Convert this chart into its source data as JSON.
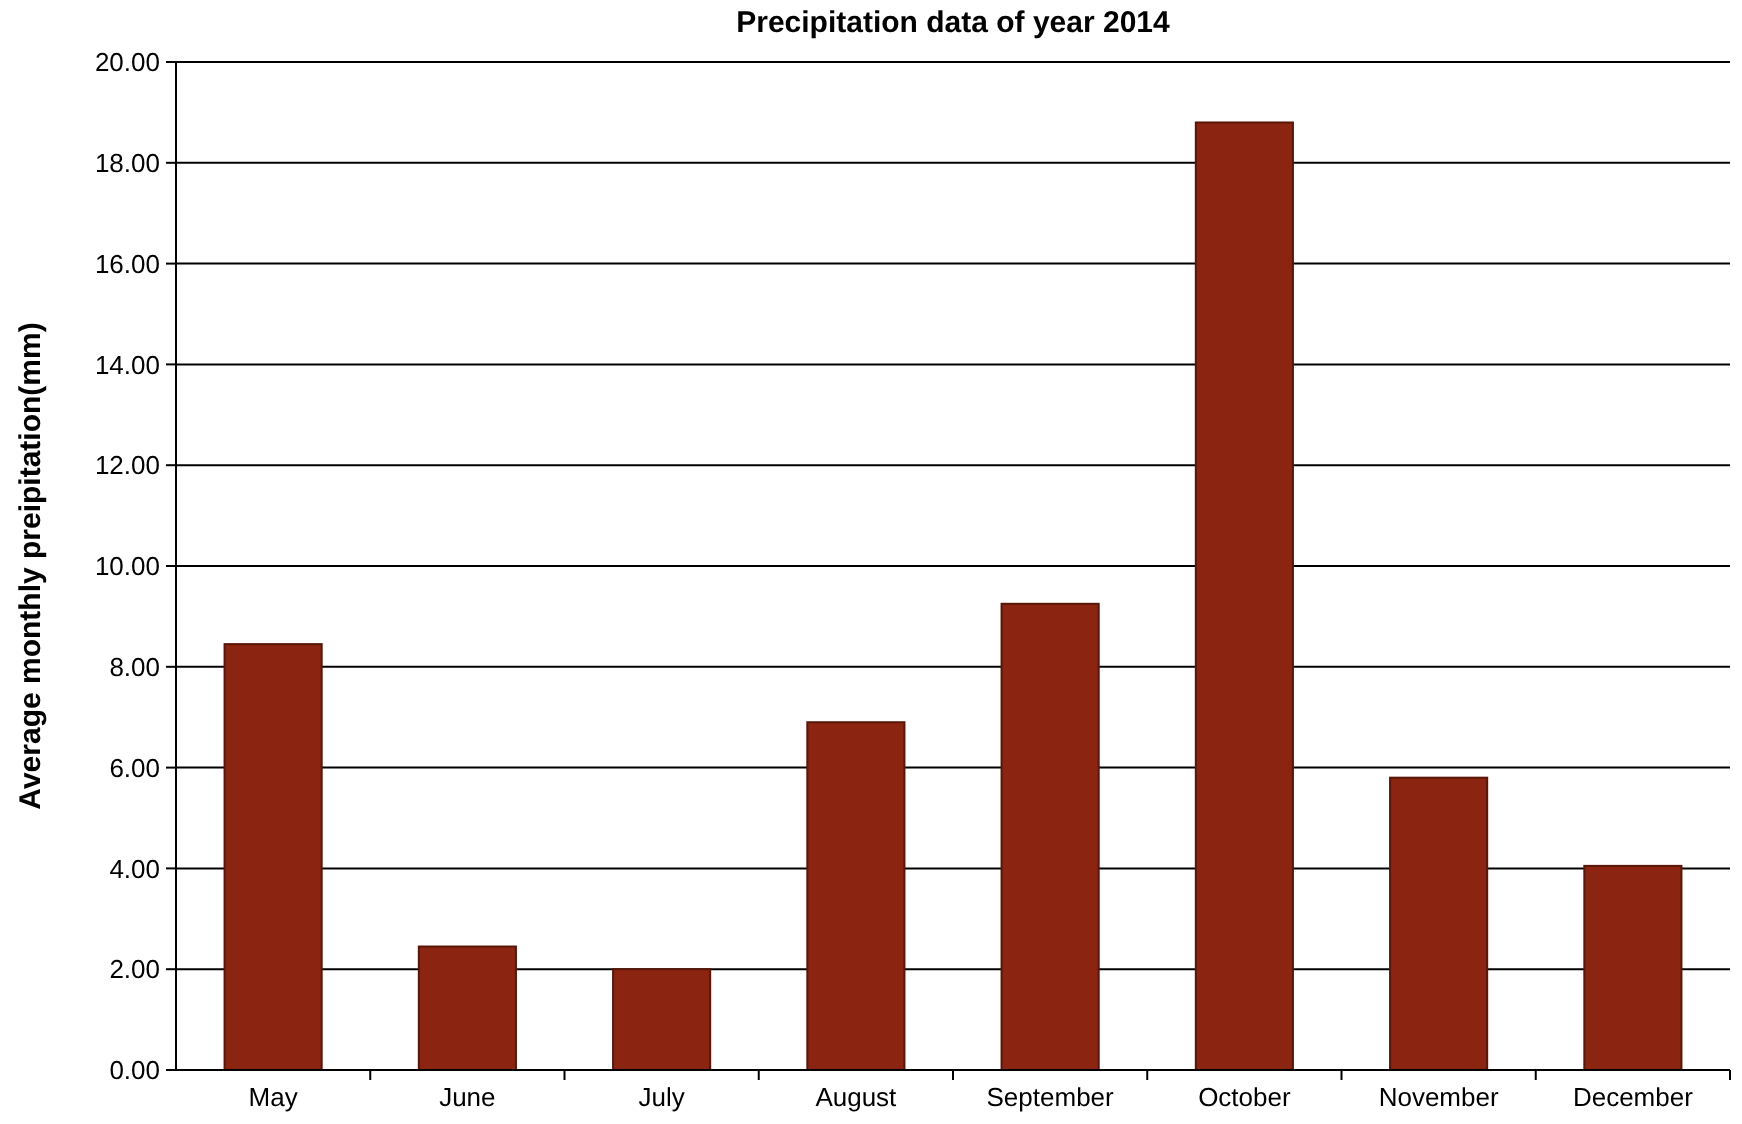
{
  "chart_data": {
    "type": "bar",
    "title": "Precipitation data of year 2014",
    "ylabel": "Average monthly preipitation(mm)",
    "categories": [
      "May",
      "June",
      "July",
      "August",
      "September",
      "October",
      "November",
      "December"
    ],
    "values": [
      8.45,
      2.45,
      2.0,
      6.9,
      9.25,
      18.8,
      5.8,
      4.05
    ],
    "color": "#8b2410",
    "ylim": [
      0,
      20
    ],
    "yticks": [
      {
        "value": 0,
        "label": "0.00"
      },
      {
        "value": 2,
        "label": "2.00"
      },
      {
        "value": 4,
        "label": "4.00"
      },
      {
        "value": 6,
        "label": "6.00"
      },
      {
        "value": 8,
        "label": "8.00"
      },
      {
        "value": 10,
        "label": "10.00"
      },
      {
        "value": 12,
        "label": "12.00"
      },
      {
        "value": 14,
        "label": "14.00"
      },
      {
        "value": 16,
        "label": "16.00"
      },
      {
        "value": 18,
        "label": "18.00"
      },
      {
        "value": 20,
        "label": "20.00"
      }
    ],
    "grid": "y"
  }
}
